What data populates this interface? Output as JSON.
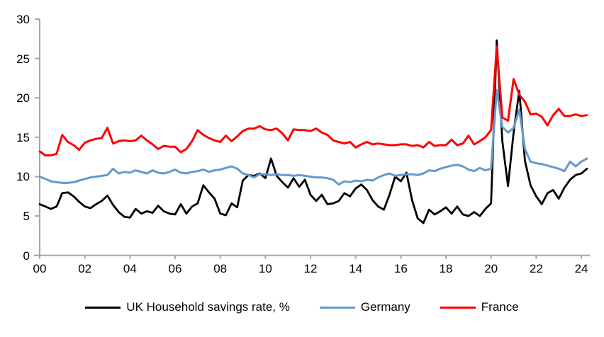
{
  "chart_data": {
    "type": "line",
    "title": "",
    "xlabel": "",
    "ylabel": "",
    "x_unit": "quarterly",
    "x_start": "2000Q1",
    "x_end": "2024Q2",
    "x_tick_labels": [
      "00",
      "02",
      "04",
      "06",
      "08",
      "10",
      "12",
      "14",
      "16",
      "18",
      "20",
      "22",
      "24"
    ],
    "y_ticks": [
      0,
      5,
      10,
      15,
      20,
      25,
      30
    ],
    "ylim": [
      0,
      30
    ],
    "grid": false,
    "legend_position": "bottom",
    "axis_color": "#a6a6a6",
    "background_color": "#ffffff",
    "series": [
      {
        "name": "UK Household savings rate, %",
        "color": "#000000",
        "stroke_width": 2.8,
        "values": [
          6.5,
          6.2,
          5.9,
          6.2,
          7.9,
          8.0,
          7.5,
          6.8,
          6.2,
          6.0,
          6.5,
          6.9,
          7.6,
          6.4,
          5.5,
          4.9,
          4.8,
          5.9,
          5.3,
          5.6,
          5.4,
          6.3,
          5.6,
          5.3,
          5.2,
          6.5,
          5.3,
          6.2,
          6.6,
          8.9,
          8.0,
          7.2,
          5.3,
          5.1,
          6.6,
          6.1,
          9.5,
          10.2,
          10.1,
          10.4,
          9.8,
          12.3,
          10.1,
          9.3,
          8.6,
          9.8,
          8.7,
          9.6,
          7.7,
          6.9,
          7.7,
          6.5,
          6.6,
          6.9,
          7.9,
          7.5,
          8.5,
          9.0,
          8.3,
          7.0,
          6.2,
          5.8,
          7.7,
          10.0,
          9.4,
          10.5,
          7.0,
          4.7,
          4.1,
          5.8,
          5.2,
          5.6,
          6.1,
          5.3,
          6.2,
          5.2,
          5.0,
          5.5,
          5.0,
          5.9,
          6.6,
          27.3,
          14.5,
          8.8,
          15.6,
          20.9,
          12.0,
          8.9,
          7.5,
          6.5,
          7.9,
          8.3,
          7.2,
          8.6,
          9.6,
          10.2,
          10.4,
          11.0
        ]
      },
      {
        "name": "Germany",
        "color": "#6699cc",
        "stroke_width": 3,
        "values": [
          10.0,
          9.7,
          9.4,
          9.3,
          9.2,
          9.2,
          9.3,
          9.5,
          9.7,
          9.9,
          10.0,
          10.1,
          10.2,
          11.0,
          10.4,
          10.6,
          10.5,
          10.8,
          10.6,
          10.4,
          10.8,
          10.5,
          10.4,
          10.6,
          10.9,
          10.5,
          10.4,
          10.6,
          10.7,
          10.9,
          10.6,
          10.8,
          10.9,
          11.1,
          11.3,
          11.0,
          10.4,
          10.2,
          9.9,
          10.3,
          10.3,
          10.2,
          10.3,
          10.2,
          10.2,
          10.1,
          10.2,
          10.1,
          10.0,
          9.9,
          9.9,
          9.8,
          9.6,
          9.0,
          9.4,
          9.3,
          9.5,
          9.4,
          9.6,
          9.5,
          9.9,
          10.2,
          10.4,
          10.1,
          10.2,
          10.3,
          10.3,
          10.2,
          10.4,
          10.8,
          10.7,
          11.0,
          11.2,
          11.4,
          11.5,
          11.3,
          10.9,
          10.7,
          11.1,
          10.8,
          11.0,
          21.0,
          16.3,
          15.6,
          16.2,
          18.5,
          13.5,
          11.9,
          11.7,
          11.6,
          11.4,
          11.2,
          11.0,
          10.7,
          11.9,
          11.3,
          11.9,
          12.3
        ]
      },
      {
        "name": "France",
        "color": "#ff0000",
        "stroke_width": 3,
        "values": [
          13.2,
          12.7,
          12.7,
          12.9,
          15.3,
          14.4,
          14.0,
          13.4,
          14.3,
          14.6,
          14.8,
          14.9,
          16.2,
          14.2,
          14.5,
          14.6,
          14.5,
          14.6,
          15.2,
          14.6,
          14.1,
          13.5,
          13.9,
          13.8,
          13.8,
          13.1,
          13.5,
          14.5,
          15.9,
          15.3,
          14.9,
          14.6,
          14.4,
          15.2,
          14.5,
          15.1,
          15.8,
          16.1,
          16.1,
          16.4,
          16.0,
          15.9,
          16.1,
          15.5,
          14.6,
          16.0,
          15.9,
          15.9,
          15.8,
          16.1,
          15.6,
          15.3,
          14.6,
          14.4,
          14.2,
          14.4,
          13.7,
          14.1,
          14.4,
          14.1,
          14.2,
          14.1,
          14.0,
          14.0,
          14.1,
          14.1,
          13.9,
          14.0,
          13.7,
          14.4,
          13.9,
          14.0,
          14.0,
          14.7,
          14.0,
          14.2,
          15.2,
          14.1,
          14.5,
          15.0,
          15.9,
          26.5,
          17.5,
          17.1,
          22.4,
          20.4,
          19.5,
          17.9,
          18.0,
          17.6,
          16.5,
          17.8,
          18.6,
          17.7,
          17.7,
          17.9,
          17.7,
          17.8
        ]
      }
    ]
  },
  "legend": {
    "items": [
      {
        "label": "UK Household savings rate, %"
      },
      {
        "label": "Germany"
      },
      {
        "label": "France"
      }
    ]
  }
}
